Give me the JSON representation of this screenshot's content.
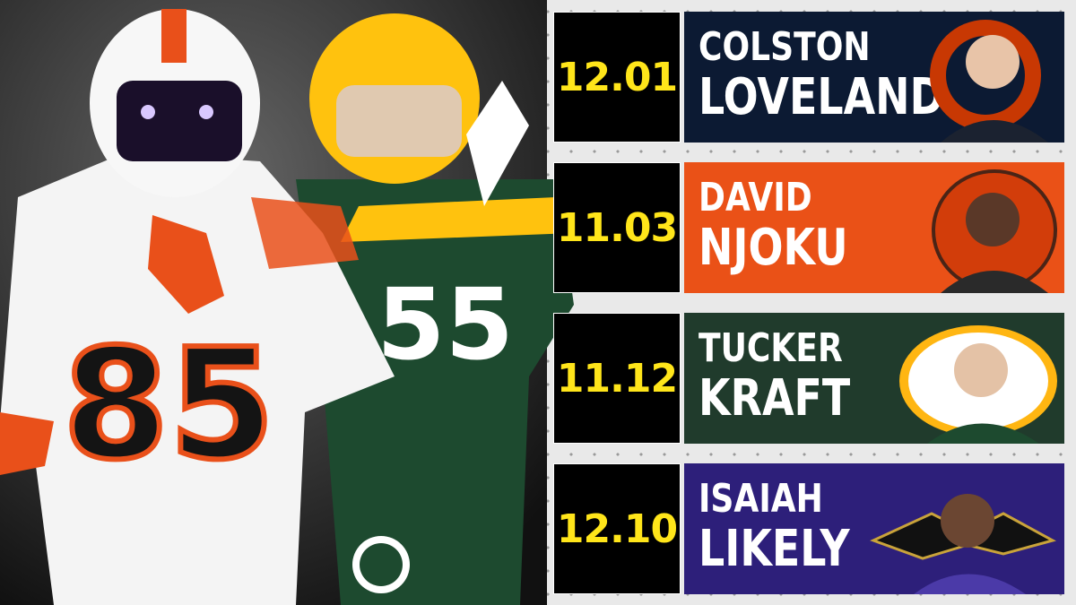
{
  "picks": [
    {
      "number": "12.01",
      "first_name": "COLSTON",
      "last_name": "LOVELAND"
    },
    {
      "number": "11.03",
      "first_name": "DAVID",
      "last_name": "NJOKU"
    },
    {
      "number": "11.12",
      "first_name": "TUCKER",
      "last_name": "KRAFT"
    },
    {
      "number": "12.10",
      "first_name": "ISAIAH",
      "last_name": "LIKELY"
    }
  ]
}
